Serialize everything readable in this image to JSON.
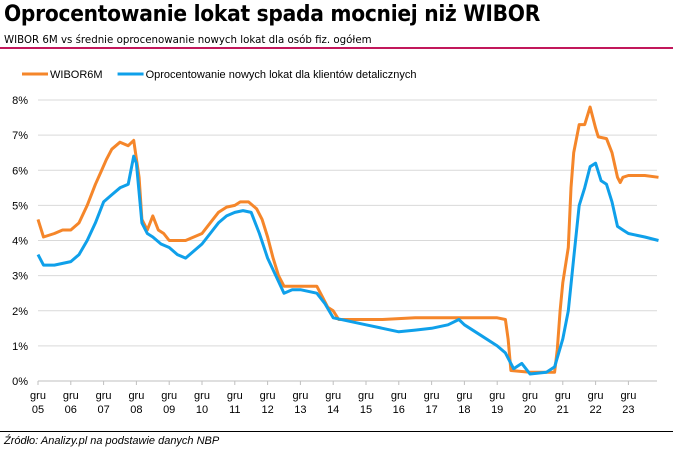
{
  "title": "Oprocentowanie lokat spada mocniej niż WIBOR",
  "subtitle": "WIBOR 6M vs średnie oprocenowanie nowych lokat dla osób fiz. ogółem",
  "source": "Źródło: Analizy.pl na podstawie danych NBP",
  "colors": {
    "accent_line": "#c2185b",
    "wibor": "#f5862a",
    "deposits": "#0fa0ea",
    "grid": "#d9d9d9"
  },
  "chart_data": {
    "type": "line",
    "title": "Oprocentowanie lokat spada mocniej niż WIBOR",
    "xlabel": "",
    "ylabel": "",
    "ylim": [
      0,
      8
    ],
    "yticks": [
      "0%",
      "1%",
      "2%",
      "3%",
      "4%",
      "5%",
      "6%",
      "7%",
      "8%"
    ],
    "xticks": [
      {
        "top": "gru",
        "bottom": "05"
      },
      {
        "top": "gru",
        "bottom": "06"
      },
      {
        "top": "gru",
        "bottom": "07"
      },
      {
        "top": "gru",
        "bottom": "08"
      },
      {
        "top": "gru",
        "bottom": "09"
      },
      {
        "top": "gru",
        "bottom": "10"
      },
      {
        "top": "gru",
        "bottom": "11"
      },
      {
        "top": "gru",
        "bottom": "12"
      },
      {
        "top": "gru",
        "bottom": "13"
      },
      {
        "top": "gru",
        "bottom": "14"
      },
      {
        "top": "gru",
        "bottom": "15"
      },
      {
        "top": "gru",
        "bottom": "16"
      },
      {
        "top": "gru",
        "bottom": "17"
      },
      {
        "top": "gru",
        "bottom": "18"
      },
      {
        "top": "gru",
        "bottom": "19"
      },
      {
        "top": "gru",
        "bottom": "20"
      },
      {
        "top": "gru",
        "bottom": "21"
      },
      {
        "top": "gru",
        "bottom": "22"
      },
      {
        "top": "gru",
        "bottom": "23"
      }
    ],
    "grid": true,
    "legend": "top-left",
    "series": [
      {
        "name": "WIBOR6M",
        "color": "#f5862a",
        "points": [
          [
            "2005-12",
            4.6
          ],
          [
            "2006-02",
            4.1
          ],
          [
            "2006-06",
            4.2
          ],
          [
            "2006-09",
            4.3
          ],
          [
            "2006-12",
            4.3
          ],
          [
            "2007-03",
            4.5
          ],
          [
            "2007-06",
            5.0
          ],
          [
            "2007-09",
            5.6
          ],
          [
            "2007-11",
            5.95
          ],
          [
            "2008-01",
            6.3
          ],
          [
            "2008-03",
            6.6
          ],
          [
            "2008-06",
            6.8
          ],
          [
            "2008-09",
            6.7
          ],
          [
            "2008-11",
            6.85
          ],
          [
            "2009-01",
            5.8
          ],
          [
            "2009-02",
            4.6
          ],
          [
            "2009-04",
            4.3
          ],
          [
            "2009-06",
            4.7
          ],
          [
            "2009-08",
            4.3
          ],
          [
            "2009-10",
            4.2
          ],
          [
            "2009-12",
            4.0
          ],
          [
            "2010-06",
            4.0
          ],
          [
            "2010-12",
            4.2
          ],
          [
            "2011-03",
            4.5
          ],
          [
            "2011-06",
            4.8
          ],
          [
            "2011-09",
            4.95
          ],
          [
            "2011-12",
            5.0
          ],
          [
            "2012-02",
            5.1
          ],
          [
            "2012-05",
            5.1
          ],
          [
            "2012-08",
            4.9
          ],
          [
            "2012-10",
            4.6
          ],
          [
            "2012-12",
            4.1
          ],
          [
            "2013-02",
            3.5
          ],
          [
            "2013-04",
            3.0
          ],
          [
            "2013-06",
            2.7
          ],
          [
            "2013-12",
            2.7
          ],
          [
            "2014-06",
            2.7
          ],
          [
            "2014-08",
            2.4
          ],
          [
            "2014-10",
            2.1
          ],
          [
            "2014-12",
            2.0
          ],
          [
            "2015-02",
            1.75
          ],
          [
            "2015-06",
            1.75
          ],
          [
            "2016-06",
            1.75
          ],
          [
            "2017-06",
            1.8
          ],
          [
            "2018-06",
            1.8
          ],
          [
            "2019-06",
            1.8
          ],
          [
            "2019-12",
            1.8
          ],
          [
            "2020-03",
            1.75
          ],
          [
            "2020-04",
            1.2
          ],
          [
            "2020-05",
            0.3
          ],
          [
            "2020-12",
            0.25
          ],
          [
            "2021-06",
            0.25
          ],
          [
            "2021-09",
            0.25
          ],
          [
            "2021-10",
            0.9
          ],
          [
            "2021-11",
            2.0
          ],
          [
            "2021-12",
            2.8
          ],
          [
            "2022-02",
            3.8
          ],
          [
            "2022-03",
            5.5
          ],
          [
            "2022-04",
            6.5
          ],
          [
            "2022-06",
            7.3
          ],
          [
            "2022-08",
            7.3
          ],
          [
            "2022-10",
            7.8
          ],
          [
            "2022-12",
            7.2
          ],
          [
            "2023-01",
            6.95
          ],
          [
            "2023-04",
            6.9
          ],
          [
            "2023-06",
            6.5
          ],
          [
            "2023-08",
            5.8
          ],
          [
            "2023-09",
            5.65
          ],
          [
            "2023-10",
            5.8
          ],
          [
            "2023-12",
            5.85
          ],
          [
            "2024-06",
            5.85
          ],
          [
            "2024-11",
            5.8
          ]
        ]
      },
      {
        "name": "Oprocentowanie nowych lokat dla klientów detalicznych",
        "color": "#0fa0ea",
        "points": [
          [
            "2005-12",
            3.6
          ],
          [
            "2006-02",
            3.3
          ],
          [
            "2006-06",
            3.3
          ],
          [
            "2006-12",
            3.4
          ],
          [
            "2007-03",
            3.6
          ],
          [
            "2007-06",
            4.0
          ],
          [
            "2007-09",
            4.5
          ],
          [
            "2007-12",
            5.1
          ],
          [
            "2008-03",
            5.3
          ],
          [
            "2008-06",
            5.5
          ],
          [
            "2008-09",
            5.6
          ],
          [
            "2008-11",
            6.4
          ],
          [
            "2008-12",
            6.2
          ],
          [
            "2009-02",
            4.5
          ],
          [
            "2009-04",
            4.2
          ],
          [
            "2009-06",
            4.1
          ],
          [
            "2009-09",
            3.9
          ],
          [
            "2009-12",
            3.8
          ],
          [
            "2010-03",
            3.6
          ],
          [
            "2010-06",
            3.5
          ],
          [
            "2010-12",
            3.9
          ],
          [
            "2011-03",
            4.2
          ],
          [
            "2011-06",
            4.5
          ],
          [
            "2011-09",
            4.7
          ],
          [
            "2011-12",
            4.8
          ],
          [
            "2012-03",
            4.85
          ],
          [
            "2012-06",
            4.8
          ],
          [
            "2012-09",
            4.2
          ],
          [
            "2012-12",
            3.5
          ],
          [
            "2013-03",
            3.0
          ],
          [
            "2013-06",
            2.5
          ],
          [
            "2013-09",
            2.6
          ],
          [
            "2013-12",
            2.6
          ],
          [
            "2014-06",
            2.5
          ],
          [
            "2014-09",
            2.2
          ],
          [
            "2014-12",
            1.8
          ],
          [
            "2015-06",
            1.7
          ],
          [
            "2015-12",
            1.6
          ],
          [
            "2016-06",
            1.5
          ],
          [
            "2016-12",
            1.4
          ],
          [
            "2017-06",
            1.45
          ],
          [
            "2017-12",
            1.5
          ],
          [
            "2018-06",
            1.6
          ],
          [
            "2018-10",
            1.75
          ],
          [
            "2018-12",
            1.6
          ],
          [
            "2019-06",
            1.3
          ],
          [
            "2019-12",
            1.0
          ],
          [
            "2020-03",
            0.8
          ],
          [
            "2020-06",
            0.35
          ],
          [
            "2020-09",
            0.5
          ],
          [
            "2020-12",
            0.2
          ],
          [
            "2021-06",
            0.25
          ],
          [
            "2021-09",
            0.4
          ],
          [
            "2021-12",
            1.2
          ],
          [
            "2022-02",
            2.0
          ],
          [
            "2022-04",
            3.5
          ],
          [
            "2022-06",
            5.0
          ],
          [
            "2022-08",
            5.5
          ],
          [
            "2022-10",
            6.1
          ],
          [
            "2022-12",
            6.2
          ],
          [
            "2023-02",
            5.7
          ],
          [
            "2023-04",
            5.6
          ],
          [
            "2023-06",
            5.1
          ],
          [
            "2023-08",
            4.4
          ],
          [
            "2023-10",
            4.3
          ],
          [
            "2023-12",
            4.2
          ],
          [
            "2024-06",
            4.1
          ],
          [
            "2024-11",
            4.0
          ]
        ]
      }
    ]
  }
}
